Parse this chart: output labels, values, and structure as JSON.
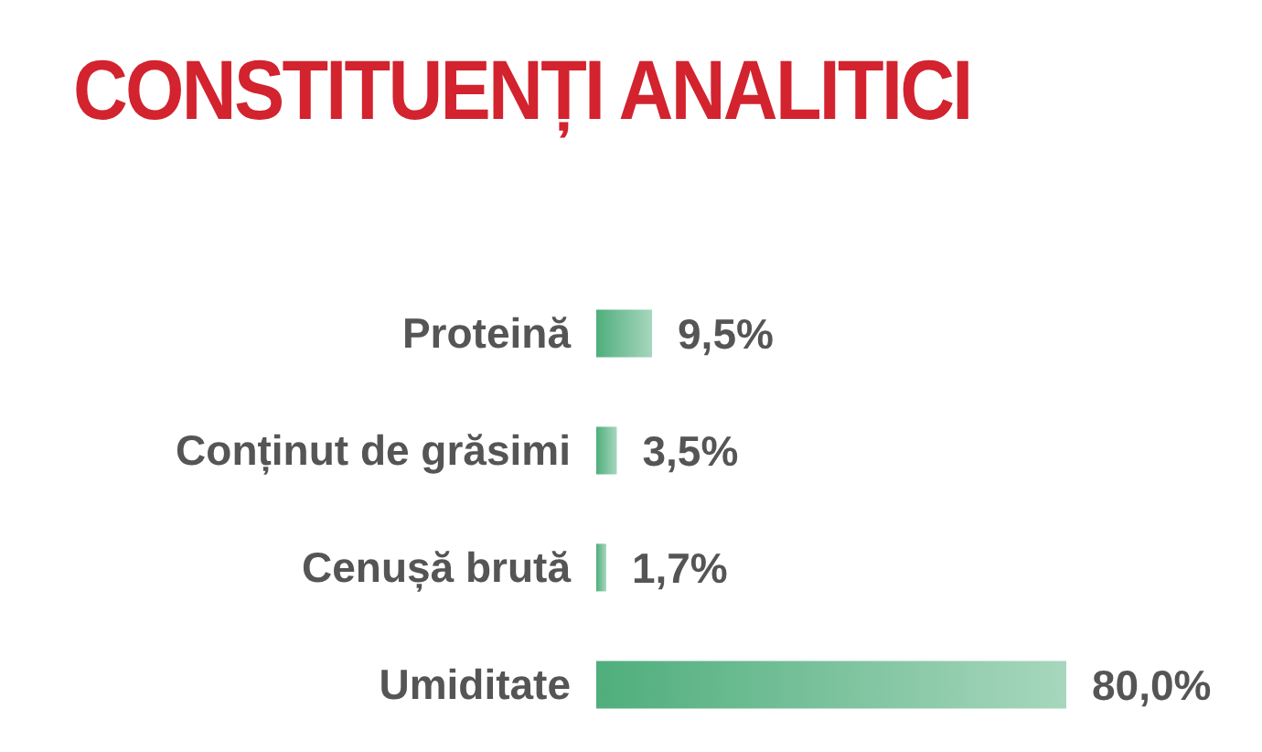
{
  "chart_data": {
    "type": "bar",
    "orientation": "horizontal",
    "title": "CONSTITUENȚI ANALITICI",
    "categories": [
      "Proteină",
      "Conținut de grăsimi",
      "Cenușă brută",
      "Umiditate"
    ],
    "values": [
      9.5,
      3.5,
      1.7,
      80.0
    ],
    "value_labels": [
      "9,5%",
      "3,5%",
      "1,7%",
      "80,0%"
    ],
    "color": "#4fae7c"
  }
}
